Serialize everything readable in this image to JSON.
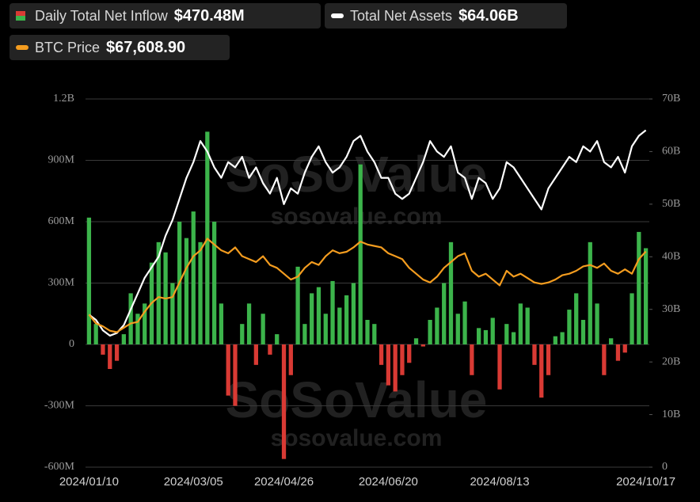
{
  "chart_data": {
    "type": "bar-line",
    "watermark": "SoSoValue",
    "watermark_url": "sosovalue.com",
    "categories": [
      "2024/01/10",
      null,
      null,
      null,
      null,
      null,
      null,
      null,
      null,
      null,
      null,
      null,
      null,
      null,
      null,
      "2024/03/05",
      null,
      null,
      null,
      null,
      null,
      null,
      null,
      null,
      null,
      null,
      null,
      null,
      "2024/04/26",
      null,
      null,
      null,
      null,
      null,
      null,
      null,
      null,
      null,
      null,
      null,
      null,
      null,
      null,
      "2024/06/20",
      null,
      null,
      null,
      null,
      null,
      null,
      null,
      null,
      null,
      null,
      null,
      null,
      null,
      null,
      null,
      "2024/08/13",
      null,
      null,
      null,
      null,
      null,
      null,
      null,
      null,
      null,
      null,
      null,
      null,
      null,
      null,
      null,
      null,
      null,
      null,
      null,
      null,
      "2024/10/17"
    ],
    "series": [
      {
        "name": "Daily Total Net Inflow",
        "latest": "$470.48M",
        "color": "#3cb44b",
        "negative_color": "#d93a34",
        "kind": "bar",
        "axis": "y",
        "values": [
          620,
          100,
          -50,
          -120,
          -80,
          50,
          250,
          150,
          200,
          400,
          500,
          450,
          300,
          600,
          520,
          650,
          500,
          1040,
          600,
          200,
          -250,
          -300,
          100,
          200,
          -100,
          150,
          -50,
          50,
          -560,
          -150,
          380,
          100,
          250,
          280,
          150,
          310,
          180,
          240,
          300,
          880,
          120,
          100,
          -100,
          -200,
          -230,
          -150,
          -90,
          30,
          -10,
          120,
          180,
          300,
          500,
          150,
          210,
          -150,
          80,
          70,
          130,
          -220,
          100,
          60,
          200,
          180,
          -100,
          -260,
          -150,
          40,
          60,
          170,
          250,
          120,
          500,
          200,
          -150,
          30,
          -80,
          -40,
          250,
          550,
          470.48
        ]
      },
      {
        "name": "Total Net Assets",
        "latest": "$64.06B",
        "color": "#ffffff",
        "kind": "line",
        "axis": "y2",
        "values": [
          29,
          28,
          26,
          25,
          25.5,
          27,
          30,
          33,
          36,
          38,
          40,
          44,
          47,
          51,
          55,
          58,
          62,
          60,
          57,
          55,
          58,
          57,
          59,
          55,
          57,
          54,
          52,
          55,
          50,
          53,
          52,
          56,
          59,
          61,
          58,
          56,
          57,
          59,
          62,
          63,
          60,
          58,
          55,
          55,
          52,
          51,
          52,
          55,
          58,
          62,
          60,
          59,
          61,
          56,
          55,
          51,
          55,
          54,
          51,
          53,
          58,
          57,
          55,
          53,
          51,
          49,
          53,
          55,
          57,
          59,
          58,
          61,
          60,
          62,
          58,
          57,
          59,
          56,
          61,
          63,
          64.06
        ]
      },
      {
        "name": "BTC Price",
        "latest": "$67,608.90",
        "color": "#f39c1f",
        "kind": "line",
        "axis": "y3",
        "values": [
          46000,
          43000,
          42000,
          40500,
          40000,
          41500,
          43000,
          43500,
          47000,
          50000,
          52000,
          51500,
          52000,
          57000,
          62000,
          66000,
          68000,
          72000,
          70000,
          68000,
          67000,
          69000,
          66000,
          65000,
          64000,
          66000,
          63000,
          62000,
          60000,
          58000,
          59000,
          62000,
          64000,
          63000,
          66000,
          68000,
          67000,
          67500,
          69000,
          71000,
          70000,
          69500,
          69000,
          67000,
          66000,
          65000,
          62000,
          60000,
          58000,
          57000,
          59000,
          62000,
          64000,
          66000,
          67000,
          61000,
          59000,
          60000,
          58000,
          56000,
          61000,
          59000,
          60000,
          58500,
          57000,
          56500,
          57000,
          58000,
          59500,
          60000,
          61000,
          62500,
          63000,
          62000,
          63500,
          61000,
          60000,
          61500,
          60000,
          65000,
          67608.9
        ]
      }
    ],
    "ylim": [
      -600,
      1200
    ],
    "yticks": [
      {
        "value": 1200,
        "label": "1.2B"
      },
      {
        "value": 900,
        "label": "900M"
      },
      {
        "value": 600,
        "label": "600M"
      },
      {
        "value": 300,
        "label": "300M"
      },
      0,
      {
        "value": -300,
        "label": "-300M"
      },
      {
        "value": -600,
        "label": "-600M"
      }
    ],
    "y2lim": [
      0,
      70
    ],
    "y2ticks": [
      {
        "value": 70,
        "label": "70B"
      },
      {
        "value": 60,
        "label": "60B"
      },
      {
        "value": 50,
        "label": "50B"
      },
      {
        "value": 40,
        "label": "40B"
      },
      {
        "value": 30,
        "label": "30B"
      },
      {
        "value": 20,
        "label": "20B"
      },
      {
        "value": 10,
        "label": "10B"
      },
      0
    ],
    "y3lim": [
      -6200,
      119800
    ],
    "grid": true
  }
}
